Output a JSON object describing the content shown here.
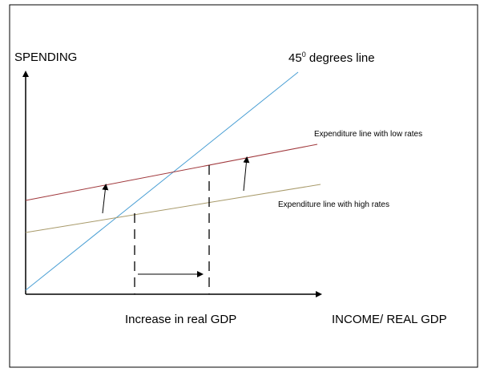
{
  "labels": {
    "y_axis": "SPENDING",
    "x_axis": "INCOME/ REAL GDP",
    "line_45_base": "45",
    "line_45_sup": "0",
    "line_45_rest": " degrees line",
    "low_rates": "Expenditure line with low rates",
    "high_rates": "Expenditure line with high rates",
    "increase": "Increase in real GDP"
  },
  "colors": {
    "line_45": "#4a9fd4",
    "low_rates": "#a0383c",
    "high_rates": "#a89a6a",
    "axis": "#000000",
    "border": "#000000"
  }
}
